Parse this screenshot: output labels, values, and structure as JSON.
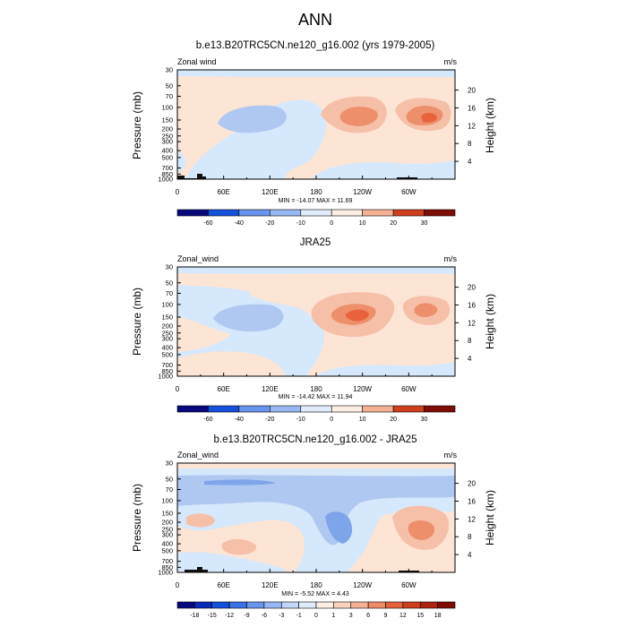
{
  "figure_title": "ANN",
  "colors": {
    "blue_light": "#d6e8fb",
    "blue_mid": "#afc8f2",
    "blue_strong": "#7ea4ea",
    "orange_light": "#fde5d6",
    "orange_mid": "#f6bfa8",
    "orange_strong": "#ee8f6c",
    "orange_deep": "#e8633c"
  },
  "chart_data": [
    {
      "type": "heatmap",
      "title": "b.e13.B20TRC5CN.ne120_g16.002 (yrs 1979-2005)",
      "left_label": "Zonal wind",
      "units": "m/s",
      "ylabel": "Pressure (mb)",
      "y2label": "Height (km)",
      "x_ticks": [
        "0",
        "60E",
        "120E",
        "180",
        "120W",
        "60W"
      ],
      "y_ticks": [
        "30",
        "50",
        "70",
        "100",
        "150",
        "200",
        "250",
        "300",
        "400",
        "500",
        "700",
        "850",
        "1000"
      ],
      "y2_ticks": [
        "20",
        "16",
        "12",
        "8",
        "4"
      ],
      "stats": "MIN = -14.07  MAX =  11.69",
      "min": -14.07,
      "max": 11.69,
      "levels": [
        "-60",
        "-40",
        "-20",
        "-10",
        "0",
        "10",
        "20",
        "30"
      ]
    },
    {
      "type": "heatmap",
      "title": "JRA25",
      "left_label": "Zonal_wind",
      "units": "m/s",
      "ylabel": "Pressure (mb)",
      "y2label": "Height (km)",
      "x_ticks": [
        "0",
        "60E",
        "120E",
        "180",
        "120W",
        "60W"
      ],
      "y_ticks": [
        "30",
        "50",
        "70",
        "100",
        "150",
        "200",
        "250",
        "300",
        "400",
        "500",
        "700",
        "850",
        "1000"
      ],
      "y2_ticks": [
        "20",
        "16",
        "12",
        "8",
        "4"
      ],
      "stats": "MIN = -14.42  MAX =  11.94",
      "min": -14.42,
      "max": 11.94,
      "levels": [
        "-60",
        "-40",
        "-20",
        "-10",
        "0",
        "10",
        "20",
        "30"
      ]
    },
    {
      "type": "heatmap",
      "title": "b.e13.B20TRC5CN.ne120_g16.002 - JRA25",
      "left_label": "Zonal_wind",
      "units": "m/s",
      "ylabel": "Pressure (mb)",
      "y2label": "Height (km)",
      "x_ticks": [
        "0",
        "60E",
        "120E",
        "180",
        "120W",
        "60W"
      ],
      "y_ticks": [
        "30",
        "50",
        "70",
        "100",
        "150",
        "200",
        "250",
        "300",
        "400",
        "500",
        "700",
        "850",
        "1000"
      ],
      "y2_ticks": [
        "20",
        "16",
        "12",
        "8",
        "4"
      ],
      "stats": "MIN =  -5.52  MAX =   4.43",
      "min": -5.52,
      "max": 4.43,
      "levels": [
        "-18",
        "-15",
        "-12",
        "-9",
        "-6",
        "-3",
        "-1",
        "0",
        "1",
        "3",
        "6",
        "9",
        "12",
        "15",
        "18"
      ]
    }
  ]
}
